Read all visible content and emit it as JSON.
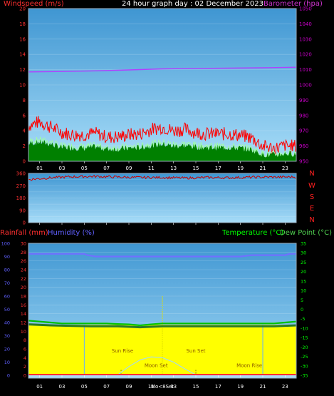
{
  "header": {
    "left_title": "Windspeed (m/s)",
    "center_title": "24 hour graph day : 02 December 2023",
    "right_title": "Barometer (hpa)"
  },
  "colors": {
    "gust": "#ff0000",
    "avg": "#a0ffa0",
    "wind_fill": "#008000",
    "baro": "#b040ff",
    "direction": "#cc0000",
    "rain": "#ff3030",
    "humidity": "#7070ff",
    "temperature": "#00c000",
    "dew": "#50d050",
    "solar_fill": "#ffff00",
    "bg_top": "#4aa0d8",
    "bg_bottom": "#a8ddf8",
    "axis_text_left": "#ff3030",
    "axis_text_right": "#cc00cc",
    "axis_text_green": "#00ff00",
    "axis_text_blue": "#6060ff"
  },
  "compass": [
    "N",
    "W",
    "S",
    "E",
    "N"
  ],
  "bottom_header": {
    "rain_label": "Rainfall (mm)",
    "hum_label": "Humidity (%)",
    "temp_label": "Temperature (°C)",
    "dew_label": "Dew Point (°C)"
  },
  "x_hours": [
    "01",
    "03",
    "05",
    "07",
    "09",
    "11",
    "13",
    "15",
    "17",
    "19",
    "21",
    "23"
  ],
  "annotations": {
    "sun_rise": "Sun Rise",
    "sun_set": "Sun Set",
    "moon_set": "Moon Set",
    "moon_rise": "Moon Rise",
    "moon_set_marker": "Mo<8Set"
  },
  "chart_data": [
    {
      "type": "line",
      "title": "24 hour graph day : 02 December 2023",
      "ylabel": "Windspeed (m/s)",
      "y2label": "Barometer (hpa)",
      "xlim": [
        0,
        24
      ],
      "ylim": [
        0,
        20
      ],
      "y2lim": [
        950,
        1050
      ],
      "yticks": [
        0,
        2,
        4,
        6,
        8,
        10,
        12,
        14,
        16,
        18,
        20
      ],
      "y2ticks": [
        950,
        960,
        970,
        980,
        990,
        1000,
        1010,
        1020,
        1030,
        1040,
        1050
      ],
      "series": [
        {
          "name": "gust",
          "axis": "left",
          "x": [
            0,
            1,
            2,
            3,
            4,
            5,
            6,
            7,
            8,
            9,
            10,
            11,
            12,
            13,
            14,
            15,
            16,
            17,
            18,
            19,
            20,
            21,
            22,
            23,
            24
          ],
          "values": [
            4.5,
            5.0,
            4.3,
            3.6,
            3.3,
            3.3,
            3.5,
            3.0,
            3.0,
            3.3,
            3.4,
            4.0,
            4.3,
            3.8,
            4.0,
            3.6,
            3.4,
            3.4,
            3.4,
            3.2,
            2.9,
            1.8,
            1.5,
            1.8,
            1.8
          ]
        },
        {
          "name": "avg",
          "axis": "left",
          "x": [
            0,
            1,
            2,
            3,
            4,
            5,
            6,
            7,
            8,
            9,
            10,
            11,
            12,
            13,
            14,
            15,
            16,
            17,
            18,
            19,
            20,
            21,
            22,
            23,
            24
          ],
          "values": [
            2.6,
            2.8,
            2.5,
            2.0,
            2.0,
            1.9,
            2.1,
            1.8,
            1.8,
            1.9,
            2.0,
            2.3,
            2.5,
            2.2,
            2.3,
            2.1,
            2.0,
            2.0,
            2.0,
            1.9,
            1.7,
            1.0,
            0.9,
            1.1,
            1.1
          ]
        },
        {
          "name": "barometer",
          "axis": "right",
          "x": [
            0,
            3,
            6,
            9,
            12,
            15,
            18,
            21,
            24
          ],
          "values": [
            1008.5,
            1008.8,
            1009.2,
            1009.8,
            1010.5,
            1010.8,
            1011.0,
            1011.2,
            1011.6
          ]
        }
      ]
    },
    {
      "type": "line",
      "ylabel": "Wind direction",
      "xlim": [
        0,
        24
      ],
      "ylim": [
        0,
        360
      ],
      "yticks": [
        0,
        45,
        90,
        135,
        180,
        225,
        270,
        315,
        360
      ],
      "series": [
        {
          "name": "direction",
          "x": [
            0,
            2,
            4,
            6,
            8,
            10,
            12,
            14,
            16,
            18,
            20,
            22,
            24
          ],
          "values": [
            315,
            328,
            336,
            338,
            333,
            330,
            330,
            326,
            330,
            328,
            332,
            333,
            334
          ]
        }
      ]
    },
    {
      "type": "line",
      "xlim": [
        0,
        24
      ],
      "ylim_rain": [
        0,
        30
      ],
      "yticks_rain": [
        0,
        2,
        4,
        6,
        8,
        10,
        12,
        14,
        16,
        18,
        20,
        22,
        24,
        26,
        28,
        30
      ],
      "ylim_humidity": [
        0,
        100
      ],
      "yticks_humidity": [
        0,
        10,
        20,
        30,
        40,
        50,
        60,
        70,
        80,
        90,
        100
      ],
      "ylim_temp": [
        -35,
        35
      ],
      "yticks_temp": [
        -35,
        -30,
        -25,
        -20,
        -15,
        -10,
        -5,
        0,
        5,
        10,
        15,
        20,
        25,
        30,
        35
      ],
      "series": [
        {
          "name": "humidity",
          "axis": "humidity",
          "x": [
            0,
            2,
            4,
            5,
            5.3,
            6,
            8,
            10,
            12,
            14,
            16,
            18,
            19,
            20,
            22,
            23,
            23.4,
            24
          ],
          "values": [
            92,
            92,
            92,
            92,
            91,
            90,
            90,
            90,
            90,
            90,
            90,
            90,
            90,
            91,
            91,
            91,
            92,
            92
          ]
        },
        {
          "name": "temperature",
          "axis": "temp",
          "x": [
            0,
            1,
            2,
            3,
            4,
            5,
            6,
            7,
            8,
            9,
            10,
            11,
            12,
            13,
            14,
            15,
            16,
            17,
            18,
            19,
            20,
            21,
            22,
            23,
            24
          ],
          "values": [
            -6,
            -6.5,
            -7,
            -7.5,
            -7.5,
            -7.5,
            -7.5,
            -7.5,
            -7.8,
            -8,
            -8.5,
            -8,
            -7.5,
            -7.5,
            -7.5,
            -7.5,
            -7.5,
            -7.5,
            -7.5,
            -7.5,
            -7.5,
            -7.5,
            -7.5,
            -7,
            -6.5
          ]
        },
        {
          "name": "dew",
          "axis": "temp",
          "x": [
            0,
            2,
            4,
            6,
            8,
            10,
            12,
            14,
            16,
            18,
            20,
            22,
            24
          ],
          "values": [
            -8,
            -8.5,
            -8.8,
            -9,
            -9,
            -9.5,
            -9,
            -9,
            -9,
            -9,
            -9,
            -9,
            -8.5
          ]
        },
        {
          "name": "solar",
          "axis": "rain",
          "x": [
            0,
            24
          ],
          "values": [
            11.5,
            11.5
          ]
        },
        {
          "name": "rainfall",
          "axis": "rain",
          "x": [
            0,
            24
          ],
          "values": [
            0,
            0
          ]
        },
        {
          "name": "moon_curve",
          "axis": "rain",
          "x": [
            8,
            9,
            10,
            11,
            12,
            13,
            14,
            15
          ],
          "values": [
            0.1,
            2.0,
            3.5,
            4.2,
            4.0,
            3.0,
            1.5,
            0.1
          ]
        }
      ],
      "markers": {
        "sun_rise": 8.3,
        "sun_set": 15.0,
        "moon_set": 12.0,
        "moon_rise": 21.0,
        "highlight_hour": 12.0
      }
    }
  ]
}
